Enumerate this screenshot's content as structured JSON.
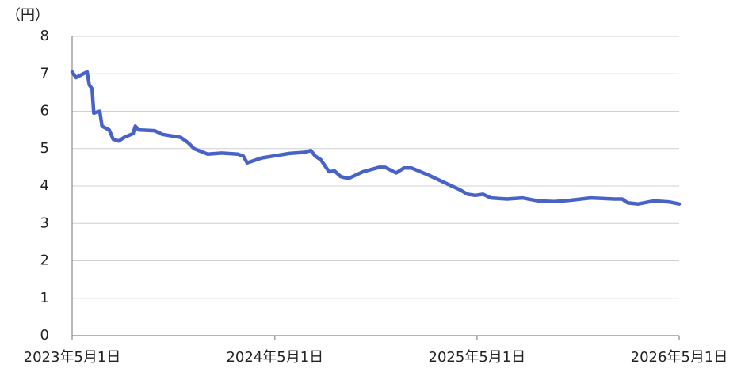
{
  "chart_data": {
    "type": "line",
    "y_label": "（円）",
    "x": [
      "2023-05-01",
      "2023-05-08",
      "2023-05-21",
      "2023-05-28",
      "2023-06-01",
      "2023-06-06",
      "2023-06-09",
      "2023-06-20",
      "2023-06-24",
      "2023-07-07",
      "2023-07-14",
      "2023-07-24",
      "2023-08-03",
      "2023-08-19",
      "2023-08-23",
      "2023-08-29",
      "2023-09-27",
      "2023-10-11",
      "2023-11-13",
      "2023-11-27",
      "2023-12-07",
      "2024-01-01",
      "2024-01-26",
      "2024-02-24",
      "2024-03-05",
      "2024-03-12",
      "2024-04-07",
      "2024-04-28",
      "2024-05-27",
      "2024-06-24",
      "2024-07-05",
      "2024-07-13",
      "2024-07-23",
      "2024-07-30",
      "2024-08-07",
      "2024-08-17",
      "2024-08-28",
      "2024-09-11",
      "2024-10-07",
      "2024-11-05",
      "2024-11-16",
      "2024-12-06",
      "2024-12-20",
      "2025-01-03",
      "2025-02-01",
      "2025-03-02",
      "2025-03-31",
      "2025-04-14",
      "2025-04-28",
      "2025-05-12",
      "2025-05-26",
      "2025-06-24",
      "2025-07-22",
      "2025-08-20",
      "2025-09-18",
      "2025-10-17",
      "2025-11-22",
      "2026-01-04",
      "2026-01-18",
      "2026-01-28",
      "2026-02-16",
      "2026-03-16",
      "2026-04-14",
      "2026-05-01"
    ],
    "series": [
      {
        "color": "#4863c8",
        "values": [
          7.05,
          6.9,
          7.0,
          7.05,
          6.7,
          6.6,
          5.95,
          6.0,
          5.6,
          5.5,
          5.25,
          5.2,
          5.3,
          5.4,
          5.6,
          5.5,
          5.48,
          5.38,
          5.3,
          5.15,
          5.0,
          4.85,
          4.88,
          4.85,
          4.8,
          4.62,
          4.75,
          4.8,
          4.87,
          4.9,
          4.95,
          4.8,
          4.7,
          4.55,
          4.38,
          4.4,
          4.25,
          4.2,
          4.38,
          4.5,
          4.5,
          4.35,
          4.48,
          4.48,
          4.3,
          4.1,
          3.9,
          3.78,
          3.75,
          3.78,
          3.68,
          3.65,
          3.68,
          3.6,
          3.58,
          3.62,
          3.68,
          3.65,
          3.65,
          3.55,
          3.52,
          3.6,
          3.57,
          3.52
        ]
      }
    ],
    "xlim": [
      "2023-05-01",
      "2026-05-01"
    ],
    "xticks": [
      {
        "value": "2023-05-01",
        "label": "2023年5月1日"
      },
      {
        "value": "2024-05-01",
        "label": "2024年5月1日"
      },
      {
        "value": "2025-05-01",
        "label": "2025年5月1日"
      },
      {
        "value": "2026-05-01",
        "label": "2026年5月1日"
      }
    ],
    "ylim": [
      0,
      8
    ],
    "yticks": [
      0,
      1,
      2,
      3,
      4,
      5,
      6,
      7,
      8
    ],
    "grid": true
  }
}
